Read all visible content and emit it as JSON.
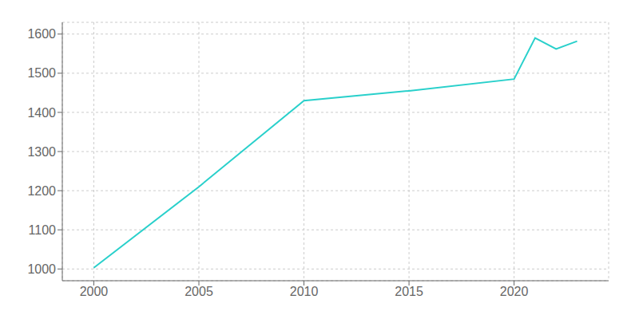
{
  "chart_data": {
    "type": "line",
    "x": [
      2000,
      2005,
      2010,
      2015,
      2020,
      2021,
      2022,
      2023
    ],
    "values": [
      1003,
      1210,
      1430,
      1455,
      1485,
      1590,
      1562,
      1582
    ],
    "color": "#29D0CB",
    "xlim": [
      1998.5,
      2024.5
    ],
    "ylim": [
      970,
      1630
    ],
    "xticks": [
      2000,
      2005,
      2010,
      2015,
      2020
    ],
    "yticks": [
      1000,
      1100,
      1200,
      1300,
      1400,
      1500,
      1600
    ],
    "grid": true
  }
}
